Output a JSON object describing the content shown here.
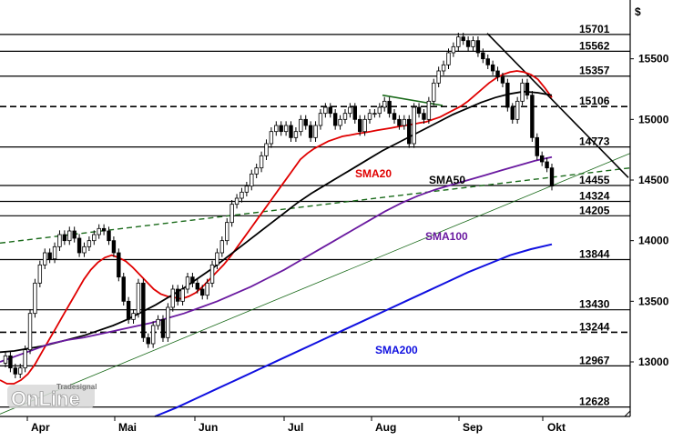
{
  "chart_data": {
    "type": "candlestick",
    "currency_symbol": "$",
    "y_axis": {
      "range": [
        12550,
        15820
      ],
      "ticks": [
        13000,
        13500,
        14000,
        14500,
        15000,
        15500
      ],
      "tick_labels": [
        "13000",
        "13500",
        "14000",
        "14500",
        "15000",
        "15500"
      ]
    },
    "x_axis": {
      "labels": [
        "Apr",
        "Mai",
        "Jun",
        "Jul",
        "Aug",
        "Sep",
        "Okt"
      ],
      "label_positions": [
        4,
        26,
        47,
        68,
        90,
        111,
        130
      ]
    },
    "levels": [
      {
        "value": 15701,
        "label": "15701",
        "style": "solid"
      },
      {
        "value": 15562,
        "label": "15562",
        "style": "solid"
      },
      {
        "value": 15357,
        "label": "15357",
        "style": "solid"
      },
      {
        "value": 15106,
        "label": "15106",
        "style": "dashed"
      },
      {
        "value": 14773,
        "label": "14773",
        "style": "solid"
      },
      {
        "value": 14455,
        "label": "14455",
        "style": "solid"
      },
      {
        "value": 14324,
        "label": "14324",
        "style": "solid"
      },
      {
        "value": 14205,
        "label": "14205",
        "style": "solid"
      },
      {
        "value": 13844,
        "label": "13844",
        "style": "solid"
      },
      {
        "value": 13430,
        "label": "13430",
        "style": "solid"
      },
      {
        "value": 13244,
        "label": "13244",
        "style": "dashed"
      },
      {
        "value": 12967,
        "label": "12967",
        "style": "solid"
      },
      {
        "value": 12628,
        "label": "12628",
        "style": "solid"
      }
    ],
    "close": [
      13050,
      12950,
      12900,
      12950,
      13100,
      13400,
      13650,
      13800,
      13900,
      13850,
      13950,
      14050,
      14000,
      14080,
      14020,
      13900,
      13950,
      14000,
      14050,
      14100,
      14080,
      14000,
      13900,
      13700,
      13500,
      13350,
      13400,
      13650,
      13200,
      13150,
      13300,
      13350,
      13200,
      13450,
      13600,
      13500,
      13600,
      13700,
      13650,
      13600,
      13550,
      13650,
      13800,
      13900,
      14000,
      14150,
      14300,
      14350,
      14400,
      14450,
      14550,
      14600,
      14700,
      14800,
      14900,
      14950,
      14900,
      14950,
      14850,
      14900,
      15000,
      14950,
      14850,
      14950,
      15050,
      15100,
      15050,
      14950,
      15000,
      15050,
      15100,
      15000,
      14900,
      15000,
      15050,
      15050,
      15100,
      15150,
      15050,
      15000,
      14950,
      15000,
      14800,
      15100,
      15050,
      15000,
      15150,
      15300,
      15400,
      15450,
      15550,
      15600,
      15680,
      15650,
      15600,
      15650,
      15550,
      15500,
      15450,
      15400,
      15350,
      15300,
      15100,
      15000,
      15150,
      15300,
      15200,
      14850,
      14700,
      14650,
      14600,
      14450
    ],
    "overlays": {
      "sma20": {
        "label": "SMA20",
        "color": "#e00000",
        "values": [
          12850,
          12820,
          12820,
          12850,
          12900,
          12980,
          13080,
          13180,
          13280,
          13380,
          13480,
          13580,
          13680,
          13760,
          13820,
          13860,
          13880,
          13860,
          13830,
          13780,
          13720,
          13660,
          13600,
          13560,
          13540,
          13530,
          13520,
          13540,
          13570,
          13620,
          13680,
          13740,
          13800,
          13870,
          13950,
          14030,
          14110,
          14190,
          14270,
          14350,
          14430,
          14510,
          14590,
          14670,
          14720,
          14760,
          14790,
          14820,
          14840,
          14860,
          14870,
          14880,
          14890,
          14900,
          14910,
          14920,
          14930,
          14940,
          14950,
          14960,
          14970,
          14980,
          15000,
          15020,
          15050,
          15080,
          15110,
          15150,
          15200,
          15250,
          15300,
          15340,
          15370,
          15390,
          15400,
          15390,
          15370,
          15330,
          15260,
          15180
        ],
        "start_index": 0
      },
      "sma50": {
        "label": "SMA50",
        "color": "#000000",
        "values": [
          13080,
          13090,
          13110,
          13130,
          13160,
          13190,
          13220,
          13260,
          13300,
          13350,
          13410,
          13470,
          13540,
          13610,
          13690,
          13770,
          13860,
          13950,
          14040,
          14130,
          14220,
          14310,
          14390,
          14460,
          14530,
          14600,
          14670,
          14740,
          14800,
          14860,
          14920,
          14980,
          15040,
          15090,
          15140,
          15180,
          15210,
          15230,
          15220,
          15200
        ],
        "start_index": 0
      },
      "sma100": {
        "label": "SMA100",
        "color": "#6a1aa0",
        "values": [
          13000,
          13050,
          13100,
          13150,
          13180,
          13200,
          13230,
          13260,
          13290,
          13320,
          13360,
          13400,
          13450,
          13500,
          13560,
          13620,
          13690,
          13760,
          13840,
          13920,
          14000,
          14080,
          14160,
          14240,
          14310,
          14370,
          14420,
          14460,
          14500,
          14540,
          14580,
          14620,
          14660,
          14690
        ],
        "start_index": 0
      },
      "sma200": {
        "label": "SMA200",
        "color": "#1010e0",
        "values": [
          12550,
          12620,
          12700,
          12780,
          12860,
          12940,
          13020,
          13100,
          13180,
          13260,
          13340,
          13420,
          13500,
          13580,
          13660,
          13740,
          13810,
          13880,
          13930,
          13970
        ],
        "start_index": 0
      }
    },
    "annotations": [
      {
        "text": "SMA20",
        "color": "#e00000"
      },
      {
        "text": "SMA50",
        "color": "#000000"
      },
      {
        "text": "SMA100",
        "color": "#6a1aa0"
      },
      {
        "text": "SMA200",
        "color": "#1010e0"
      }
    ],
    "watermark": {
      "text": "OnLine",
      "sub": "Tradesignal"
    }
  }
}
